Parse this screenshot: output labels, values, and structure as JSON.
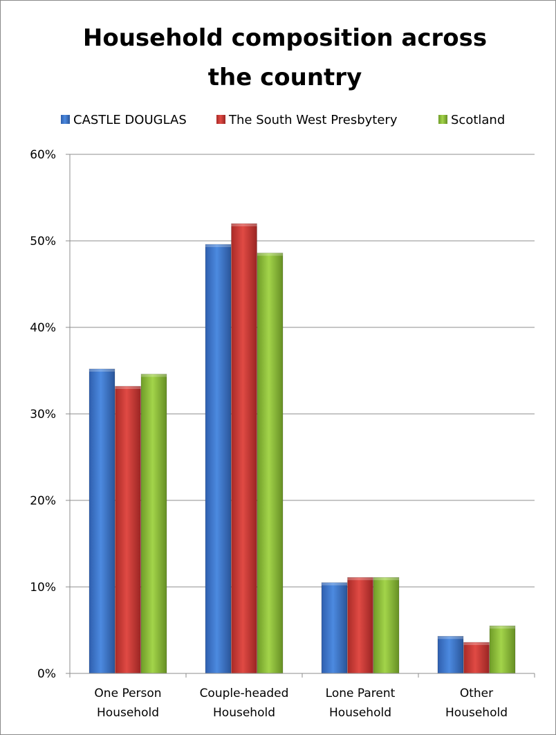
{
  "chart_data": {
    "type": "bar",
    "title": "Household composition across the country",
    "title_lines": [
      "Household composition across",
      "the country"
    ],
    "xlabel": "",
    "ylabel": "",
    "categories": [
      "One Person Household",
      "Couple-headed Household",
      "Lone Parent Household",
      "Other Household"
    ],
    "category_lines": [
      [
        "One Person",
        "Household"
      ],
      [
        "Couple-headed",
        "Household"
      ],
      [
        "Lone Parent",
        "Household"
      ],
      [
        "Other",
        "Household"
      ]
    ],
    "series": [
      {
        "name": "CASTLE DOUGLAS",
        "values": [
          35.2,
          49.6,
          10.5,
          4.3
        ],
        "color": "#3c78d0"
      },
      {
        "name": "The South West Presbytery",
        "values": [
          33.2,
          52.0,
          11.1,
          3.6
        ],
        "color": "#d03a36"
      },
      {
        "name": "Scotland",
        "values": [
          34.6,
          48.6,
          11.1,
          5.5
        ],
        "color": "#8fc33a"
      }
    ],
    "ylim": [
      0,
      60
    ],
    "yticks": [
      0,
      10,
      20,
      30,
      40,
      50,
      60
    ],
    "ytick_labels": [
      "0%",
      "10%",
      "20%",
      "30%",
      "40%",
      "50%",
      "60%"
    ],
    "grid": true,
    "legend_position": "top"
  }
}
